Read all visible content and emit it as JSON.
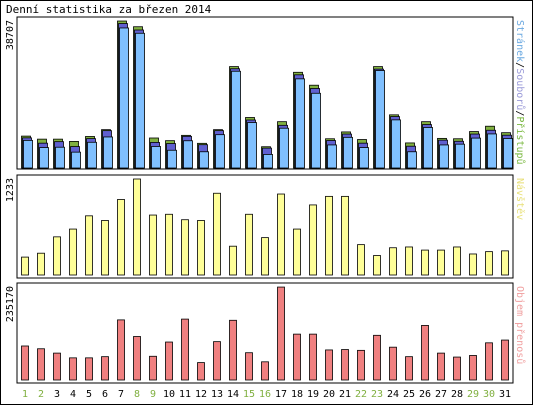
{
  "title": "Denní statistika za březen 2014",
  "chart_data": [
    {
      "type": "bar",
      "name_parts": [
        {
          "text": "Stránek",
          "color": "#6aa8e0"
        },
        {
          "text": "/",
          "color": "#000000"
        },
        {
          "text": "Souborů",
          "color": "#9a9ad8"
        },
        {
          "text": "/",
          "color": "#000000"
        },
        {
          "text": "Přístupů",
          "color": "#7ab840"
        }
      ],
      "y_max_label": "38707",
      "ylim": [
        0,
        38707
      ],
      "colors": {
        "pages": "#80c0ff",
        "files": "#6060d0",
        "hits": "#80b040"
      },
      "series": [
        {
          "key": "hits",
          "values": [
            8400,
            7600,
            7600,
            7000,
            8300,
            10100,
            38700,
            37200,
            7900,
            7200,
            8600,
            6500,
            10100,
            26700,
            13300,
            5600,
            12200,
            25200,
            21800,
            7700,
            9500,
            7500,
            26700,
            14000,
            6600,
            12200,
            7800,
            7700,
            9600,
            11000,
            9300
          ]
        },
        {
          "key": "files",
          "values": [
            8200,
            6800,
            7200,
            5900,
            8000,
            10100,
            38300,
            36600,
            7000,
            6700,
            8600,
            6400,
            10100,
            26400,
            12900,
            5500,
            11500,
            24800,
            21200,
            7500,
            9200,
            6800,
            26300,
            13800,
            6000,
            11700,
            7600,
            7300,
            9200,
            10200,
            8900
          ]
        },
        {
          "key": "pages",
          "values": [
            7800,
            5900,
            6000,
            4700,
            7300,
            8700,
            37400,
            36000,
            6200,
            5200,
            7700,
            4800,
            9300,
            26000,
            12500,
            4100,
            11000,
            24000,
            20200,
            6600,
            8600,
            5900,
            26200,
            13200,
            4800,
            11200,
            6600,
            6800,
            8400,
            9500,
            8300
          ]
        }
      ]
    },
    {
      "type": "bar",
      "name": "Návštěv",
      "name_color": "#e8e07a",
      "color": "#ffff99",
      "y_max_label": "1233",
      "ylim": [
        0,
        1233
      ],
      "values": [
        230,
        280,
        490,
        590,
        760,
        700,
        970,
        1233,
        770,
        780,
        710,
        700,
        1050,
        370,
        780,
        480,
        1040,
        590,
        900,
        1010,
        1010,
        390,
        250,
        350,
        360,
        320,
        320,
        360,
        270,
        300,
        310
      ]
    },
    {
      "type": "bar",
      "name": "Objem přenosů",
      "name_color": "#f0a0a0",
      "color": "#f08080",
      "y_max_label": "235170",
      "ylim": [
        0,
        235170
      ],
      "values": [
        86000,
        79000,
        68000,
        56000,
        56000,
        59000,
        152000,
        110000,
        60000,
        96000,
        154000,
        44000,
        97000,
        151000,
        69000,
        46000,
        235000,
        116000,
        116000,
        76000,
        77000,
        75000,
        113000,
        83000,
        59000,
        138000,
        68000,
        58000,
        62000,
        94000,
        101000
      ]
    }
  ],
  "days": [
    {
      "label": "1",
      "weekend": true
    },
    {
      "label": "2",
      "weekend": true
    },
    {
      "label": "3",
      "weekend": false
    },
    {
      "label": "4",
      "weekend": false
    },
    {
      "label": "5",
      "weekend": false
    },
    {
      "label": "6",
      "weekend": false
    },
    {
      "label": "7",
      "weekend": false
    },
    {
      "label": "8",
      "weekend": true
    },
    {
      "label": "9",
      "weekend": true
    },
    {
      "label": "10",
      "weekend": false
    },
    {
      "label": "11",
      "weekend": false
    },
    {
      "label": "12",
      "weekend": false
    },
    {
      "label": "13",
      "weekend": false
    },
    {
      "label": "14",
      "weekend": false
    },
    {
      "label": "15",
      "weekend": true
    },
    {
      "label": "16",
      "weekend": true
    },
    {
      "label": "17",
      "weekend": false
    },
    {
      "label": "18",
      "weekend": false
    },
    {
      "label": "19",
      "weekend": false
    },
    {
      "label": "20",
      "weekend": false
    },
    {
      "label": "21",
      "weekend": false
    },
    {
      "label": "22",
      "weekend": true
    },
    {
      "label": "23",
      "weekend": true
    },
    {
      "label": "24",
      "weekend": false
    },
    {
      "label": "25",
      "weekend": false
    },
    {
      "label": "26",
      "weekend": false
    },
    {
      "label": "27",
      "weekend": false
    },
    {
      "label": "28",
      "weekend": false
    },
    {
      "label": "29",
      "weekend": true
    },
    {
      "label": "30",
      "weekend": true
    },
    {
      "label": "31",
      "weekend": false
    }
  ],
  "colors": {
    "weekday_label": "#000000",
    "weekend_label": "#80b040"
  }
}
